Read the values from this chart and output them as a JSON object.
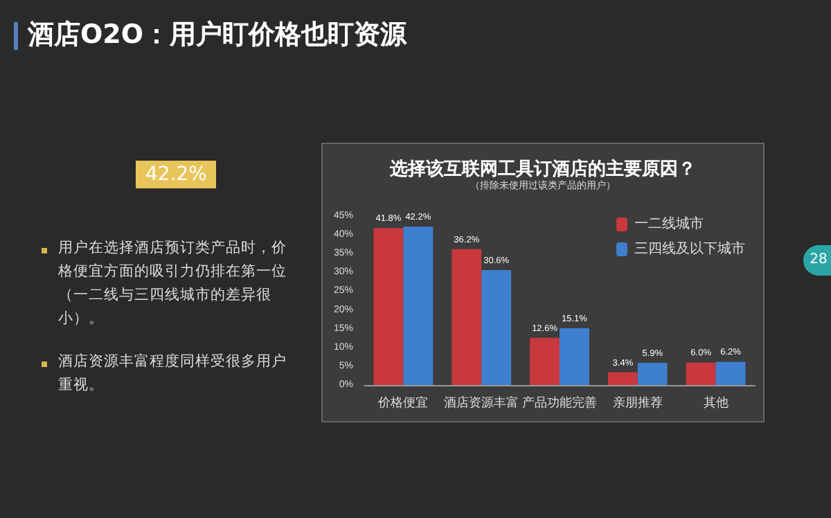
{
  "chart_data": {
    "type": "bar",
    "title": "选择该互联网工具订酒店的主要原因？",
    "subtitle": "（排除未使用过该类产品的用户）",
    "categories": [
      "价格便宜",
      "酒店资源丰富",
      "产品功能完善",
      "亲朋推荐",
      "其他"
    ],
    "series": [
      {
        "name": "一二线城市",
        "color": "#c8383c",
        "values": [
          41.8,
          36.2,
          12.6,
          3.4,
          6.0
        ],
        "value_labels": [
          "41.8%",
          "36.2%",
          "12.6%",
          "3.4%",
          "6.0%"
        ]
      },
      {
        "name": "三四线及以下城市",
        "color": "#3f7fcf",
        "values": [
          42.2,
          30.6,
          15.1,
          5.9,
          6.2
        ],
        "value_labels": [
          "42.2%",
          "30.6%",
          "15.1%",
          "5.9%",
          "6.2%"
        ]
      }
    ],
    "ylim": [
      0,
      45
    ],
    "yticks": [
      {
        "value": 0,
        "label": "0%"
      },
      {
        "value": 5,
        "label": "5%"
      },
      {
        "value": 10,
        "label": "10%"
      },
      {
        "value": 15,
        "label": "15%"
      },
      {
        "value": 20,
        "label": "20%"
      },
      {
        "value": 25,
        "label": "25%"
      },
      {
        "value": 30,
        "label": "30%"
      },
      {
        "value": 35,
        "label": "35%"
      },
      {
        "value": 40,
        "label": "40%"
      },
      {
        "value": 45,
        "label": "45%"
      }
    ],
    "grid": false,
    "legend": "right",
    "annotations": [
      "酒店O2O：用户盯价格也盯资源",
      "42.2%",
      "用户在选择酒店预订类产品时，价格便宜方面的吸引力仍排在第一位（一二线与三四线城市的差异很小）。",
      "酒店资源丰富程度同样受很多用户重视。",
      "28"
    ]
  }
}
